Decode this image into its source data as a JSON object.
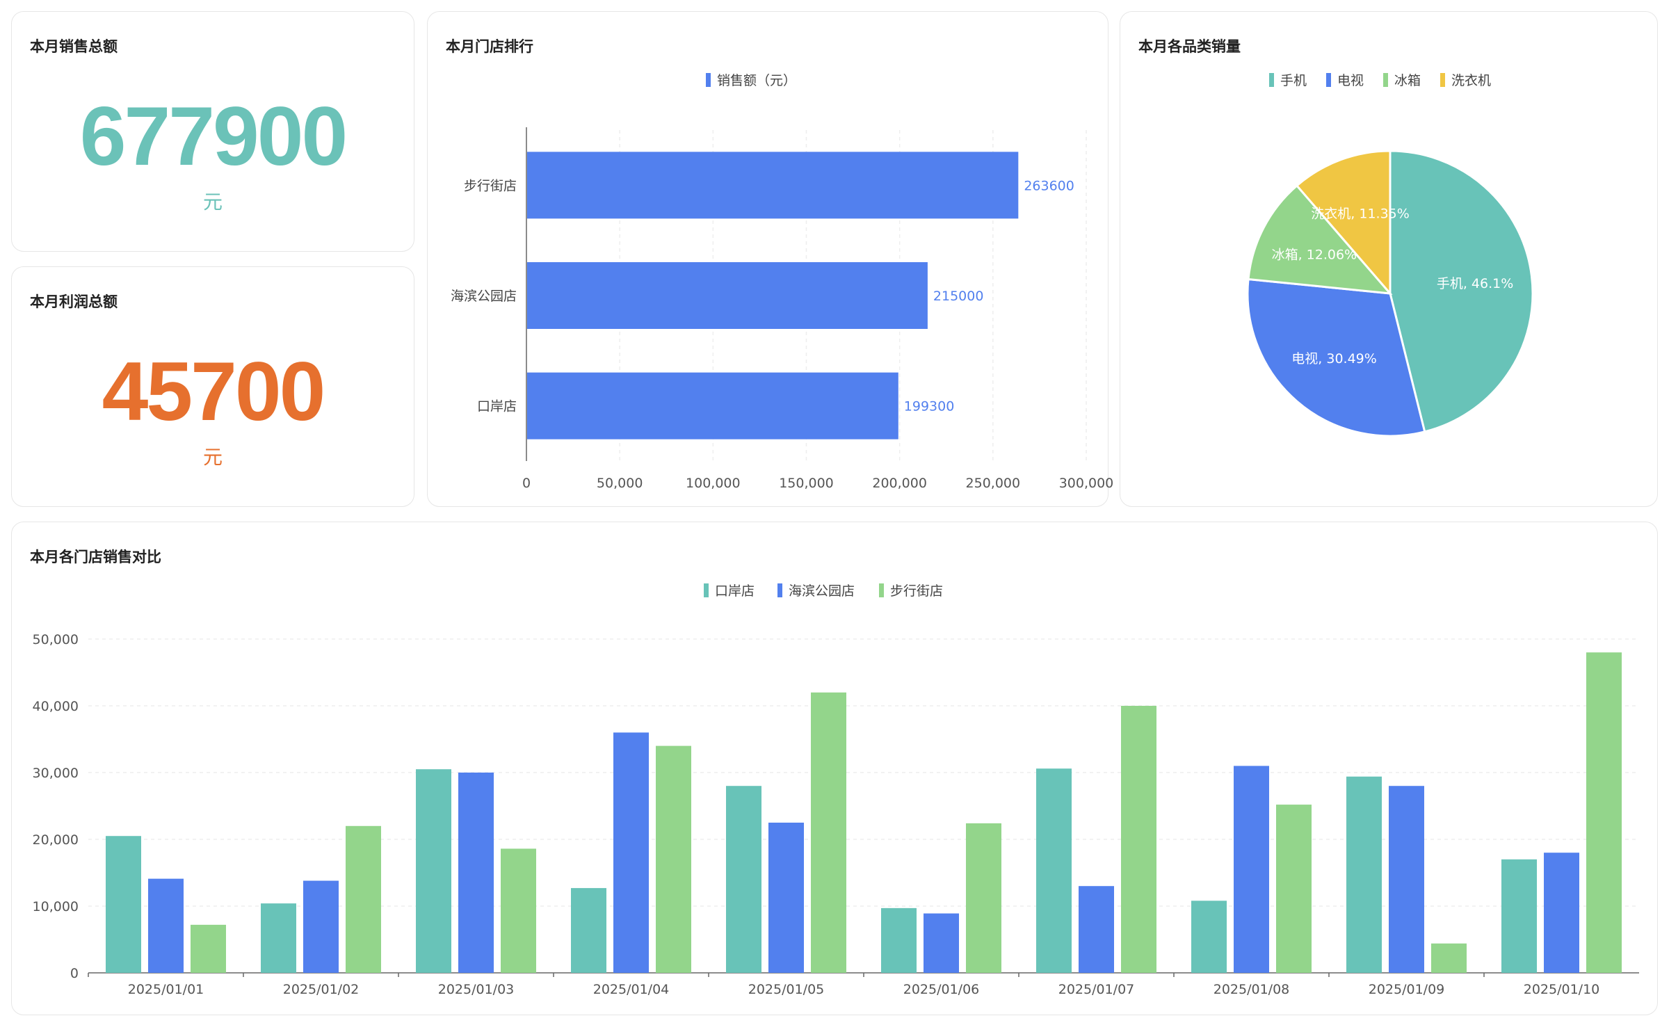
{
  "sales_card": {
    "title": "本月销售总额",
    "value": "677900",
    "unit": "元",
    "color": "#6bc2b8"
  },
  "profit_card": {
    "title": "本月利润总额",
    "value": "45700",
    "unit": "元",
    "color": "#e6702e"
  },
  "colors": {
    "teal": "#68c3b8",
    "blue": "#5280ee",
    "green": "#93d58b",
    "yellow": "#f0c643"
  },
  "chart_data": [
    {
      "id": "store_ranking",
      "type": "bar",
      "orientation": "horizontal",
      "title": "本月门店排行",
      "legend": [
        "销售额（元）"
      ],
      "categories": [
        "步行街店",
        "海滨公园店",
        "口岸店"
      ],
      "values": [
        263600,
        215000,
        199300
      ],
      "value_labels": [
        "263600",
        "215000",
        "199300"
      ],
      "xlim": [
        0,
        300000
      ],
      "xticks": [
        0,
        50000,
        100000,
        150000,
        200000,
        250000,
        300000
      ],
      "xtick_labels": [
        "0",
        "50,000",
        "100,000",
        "150,000",
        "200,000",
        "250,000",
        "300,000"
      ],
      "grid": true
    },
    {
      "id": "category_sales",
      "type": "pie",
      "title": "本月各品类销量",
      "legend": [
        "手机",
        "电视",
        "冰箱",
        "洗衣机"
      ],
      "slices": [
        {
          "name": "手机",
          "value": 46.1,
          "label": "手机, 46.1%"
        },
        {
          "name": "电视",
          "value": 30.49,
          "label": "电视, 30.49%"
        },
        {
          "name": "冰箱",
          "value": 12.06,
          "label": "冰箱, 12.06%"
        },
        {
          "name": "洗衣机",
          "value": 11.35,
          "label": "洗衣机, 11.35%"
        }
      ]
    },
    {
      "id": "store_compare",
      "type": "bar",
      "title": "本月各门店销售对比",
      "categories": [
        "2025/01/01",
        "2025/01/02",
        "2025/01/03",
        "2025/01/04",
        "2025/01/05",
        "2025/01/06",
        "2025/01/07",
        "2025/01/08",
        "2025/01/09",
        "2025/01/10"
      ],
      "series": [
        {
          "name": "口岸店",
          "values": [
            20500,
            10400,
            30500,
            12700,
            28000,
            9700,
            30600,
            10800,
            29400,
            17000
          ]
        },
        {
          "name": "海滨公园店",
          "values": [
            14100,
            13800,
            30000,
            36000,
            22500,
            8900,
            13000,
            31000,
            28000,
            18000
          ]
        },
        {
          "name": "步行街店",
          "values": [
            7200,
            22000,
            18600,
            34000,
            42000,
            22400,
            40000,
            25200,
            4400,
            48000
          ]
        }
      ],
      "ylim": [
        0,
        50000
      ],
      "yticks": [
        0,
        10000,
        20000,
        30000,
        40000,
        50000
      ],
      "ytick_labels": [
        "0",
        "10,000",
        "20,000",
        "30,000",
        "40,000",
        "50,000"
      ],
      "grid": true
    }
  ]
}
